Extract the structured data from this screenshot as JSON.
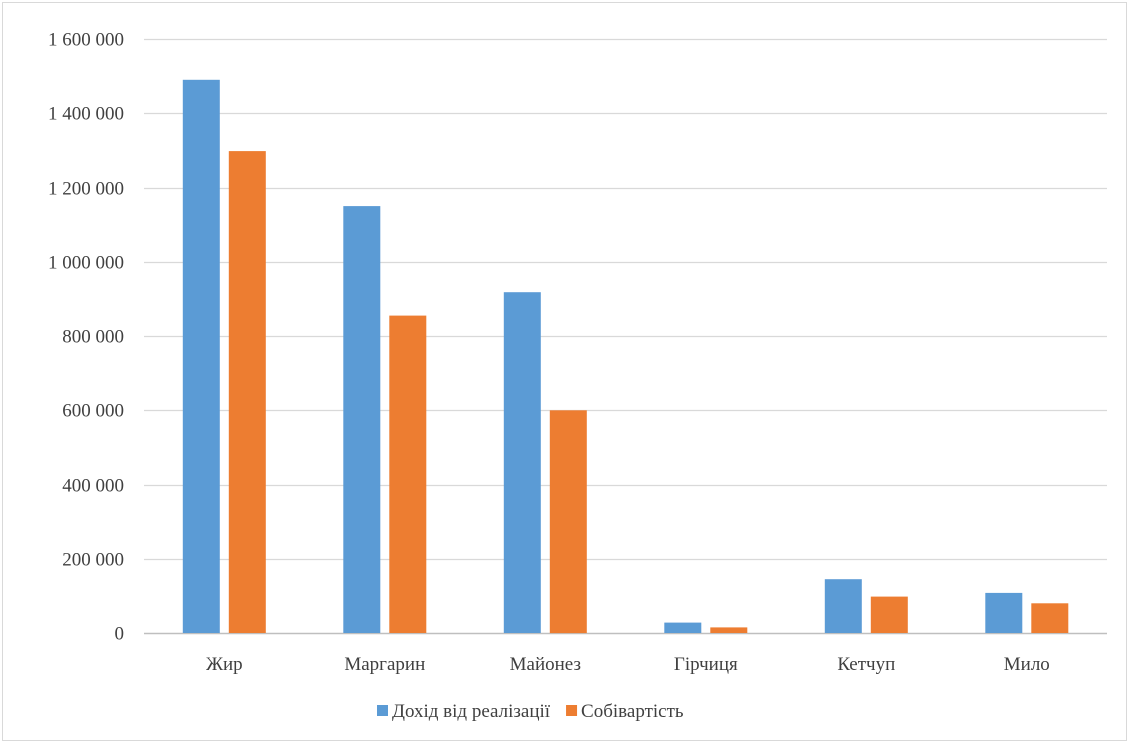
{
  "chart_data": {
    "type": "bar",
    "categories": [
      "Жир",
      "Маргарин",
      "Майонез",
      "Гірчиця",
      "Кетчуп",
      "Мило"
    ],
    "series": [
      {
        "name": "Дохід від реалізації",
        "color": "#5b9bd5",
        "values": [
          1490000,
          1150000,
          918000,
          28000,
          145000,
          108000
        ]
      },
      {
        "name": "Собівартість",
        "color": "#ed7d31",
        "values": [
          1298000,
          855000,
          600000,
          15000,
          98000,
          80000
        ]
      }
    ],
    "y_ticks": [
      {
        "value": 0,
        "label": "0"
      },
      {
        "value": 200000,
        "label": "200 000"
      },
      {
        "value": 400000,
        "label": "400 000"
      },
      {
        "value": 600000,
        "label": "600 000"
      },
      {
        "value": 800000,
        "label": "800 000"
      },
      {
        "value": 1000000,
        "label": "1 000 000"
      },
      {
        "value": 1200000,
        "label": "1 200 000"
      },
      {
        "value": 1400000,
        "label": "1 400 000"
      },
      {
        "value": 1600000,
        "label": "1 600 000"
      }
    ],
    "ylim": [
      0,
      1600000
    ],
    "grid": true,
    "legend_position": "bottom",
    "title": "",
    "xlabel": "",
    "ylabel": ""
  }
}
